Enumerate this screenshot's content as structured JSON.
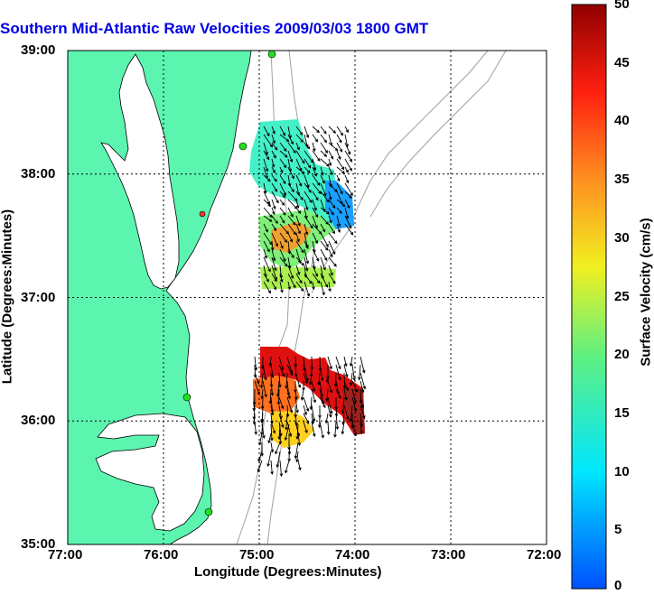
{
  "title": "Southern Mid-Atlantic Raw Velocities 2009/03/03 1800 GMT",
  "xlabel": "Longitude (Degrees:Minutes)",
  "ylabel": "Latitude (Degrees:Minutes)",
  "colorbar_label": "Surface Velocity (cm/s)",
  "x_ticks": [
    "77:00",
    "76:00",
    "75:00",
    "74:00",
    "73:00",
    "72:00"
  ],
  "y_ticks": [
    "39:00",
    "38:00",
    "37:00",
    "36:00",
    "35:00"
  ],
  "colorbar_ticks": [
    "50",
    "45",
    "40",
    "35",
    "30",
    "25",
    "20",
    "15",
    "10",
    "5",
    "0"
  ],
  "colors": {
    "land": "#5cf5b0",
    "title": "#0000e6",
    "bathymetry": "#a0a0a0",
    "station": "#22dd22",
    "station_alt": "#ff3333"
  },
  "chart_data": {
    "type": "heatmap",
    "title": "Southern Mid-Atlantic Raw Velocities 2009/03/03 1800 GMT",
    "xlabel": "Longitude (Degrees:Minutes)",
    "ylabel": "Latitude (Degrees:Minutes)",
    "xlim": [
      -77,
      -72
    ],
    "ylim": [
      35,
      39
    ],
    "clim": [
      0,
      50
    ],
    "grid": true,
    "colorbar": "right"
  }
}
